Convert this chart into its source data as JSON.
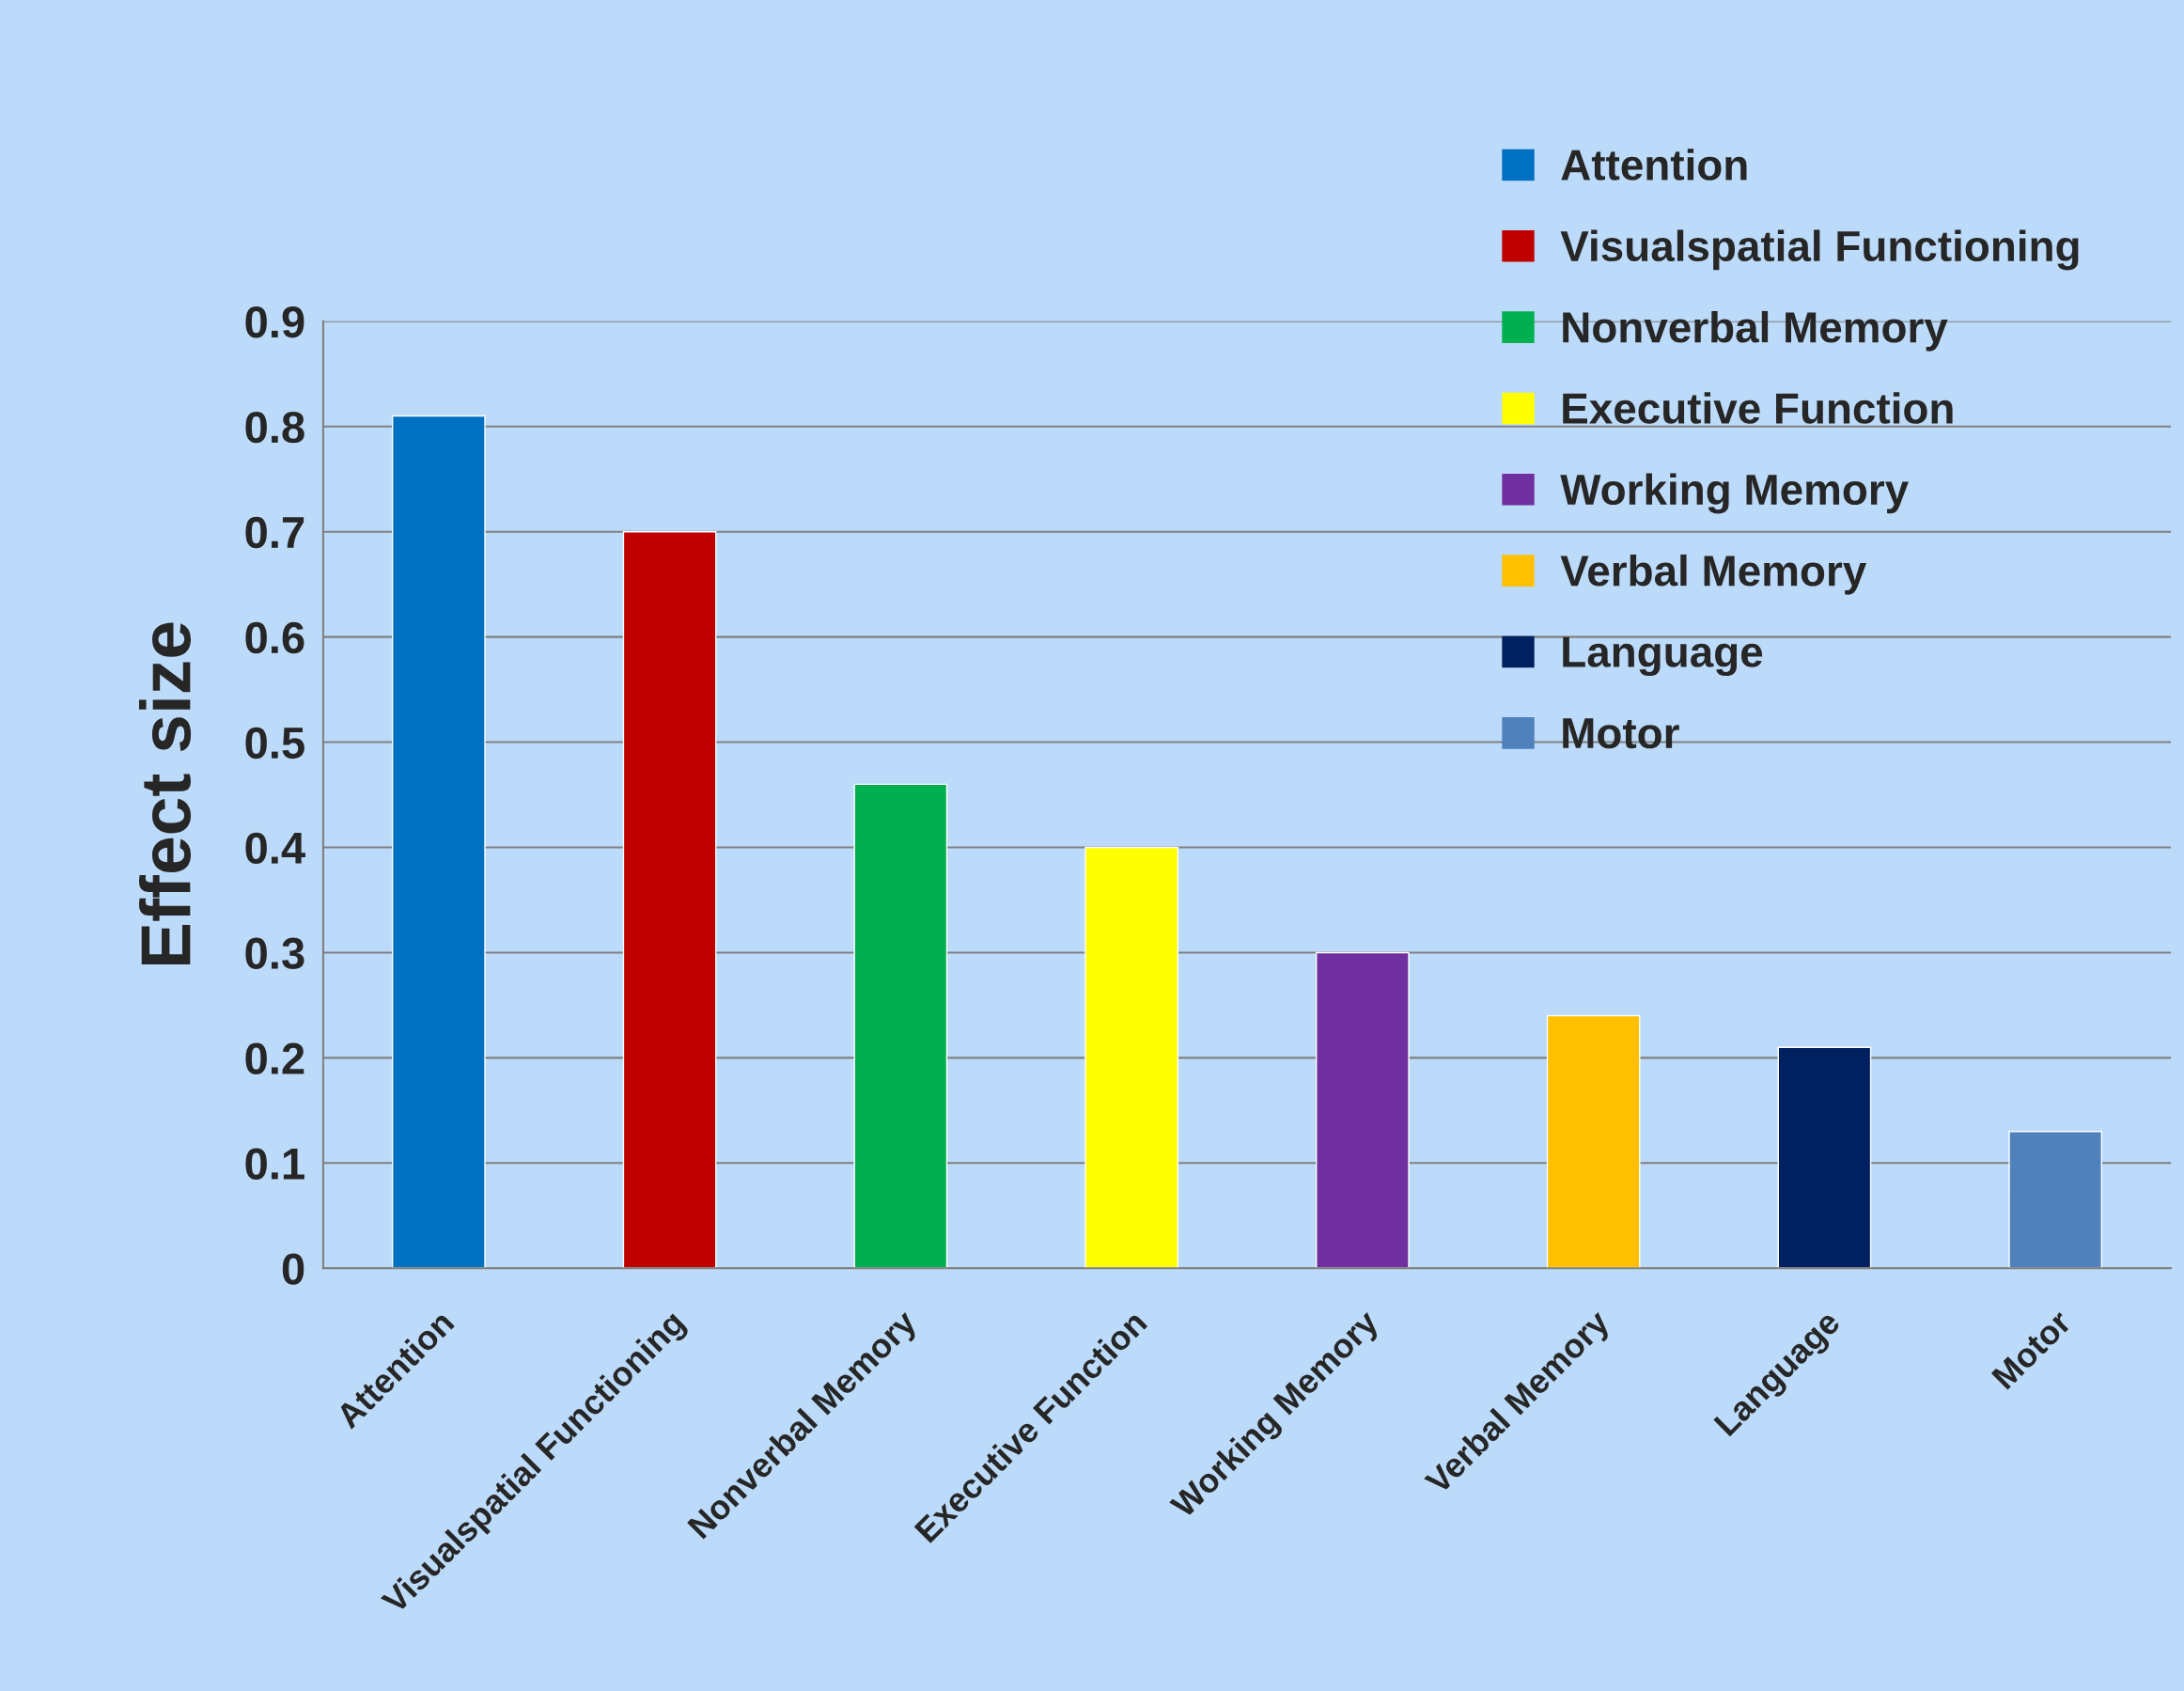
{
  "chart_data": {
    "type": "bar",
    "ylabel": "Effect size",
    "categories": [
      "Attention",
      "Visualspatial Functioning",
      "Nonverbal Memory",
      "Executive Function",
      "Working Memory",
      "Verbal Memory",
      "Language",
      "Motor"
    ],
    "series": [
      {
        "name": "Attention",
        "color": "#0070c0",
        "values": [
          0.81,
          null,
          null,
          null,
          null,
          null,
          null,
          null
        ]
      },
      {
        "name": "Visualspatial Functioning",
        "color": "#c00000",
        "values": [
          null,
          0.7,
          null,
          null,
          null,
          null,
          null,
          null
        ]
      },
      {
        "name": "Nonverbal Memory",
        "color": "#00b050",
        "values": [
          null,
          null,
          0.46,
          null,
          null,
          null,
          null,
          null
        ]
      },
      {
        "name": "Executive Function",
        "color": "#ffff00",
        "values": [
          null,
          null,
          null,
          0.4,
          null,
          null,
          null,
          null
        ]
      },
      {
        "name": "Working Memory",
        "color": "#7030a0",
        "values": [
          null,
          null,
          null,
          null,
          0.3,
          null,
          null,
          null
        ]
      },
      {
        "name": "Verbal Memory",
        "color": "#ffc000",
        "values": [
          null,
          null,
          null,
          null,
          null,
          0.24,
          null,
          null
        ]
      },
      {
        "name": "Language",
        "color": "#002060",
        "values": [
          null,
          null,
          null,
          null,
          null,
          null,
          0.21,
          null
        ]
      },
      {
        "name": "Motor",
        "color": "#4f81bd",
        "values": [
          null,
          null,
          null,
          null,
          null,
          null,
          null,
          0.13
        ]
      }
    ],
    "ylim": [
      0,
      0.9
    ],
    "yticks": [
      0,
      0.1,
      0.2,
      0.3,
      0.4,
      0.5,
      0.6,
      0.7,
      0.8,
      0.9
    ],
    "grid": "y",
    "legend": "top right"
  }
}
